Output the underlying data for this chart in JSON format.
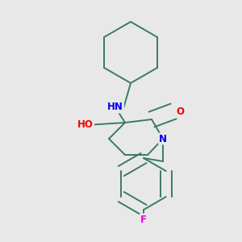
{
  "bg_color": "#e8e8e8",
  "bond_color": "#3a7a68",
  "atom_colors": {
    "N": "#0000ee",
    "O": "#ee0000",
    "F": "#ee00ee",
    "C": "#3a7a68"
  },
  "font_size": 8.5,
  "line_width": 1.4,
  "figsize": [
    3.0,
    3.0
  ],
  "dpi": 100
}
